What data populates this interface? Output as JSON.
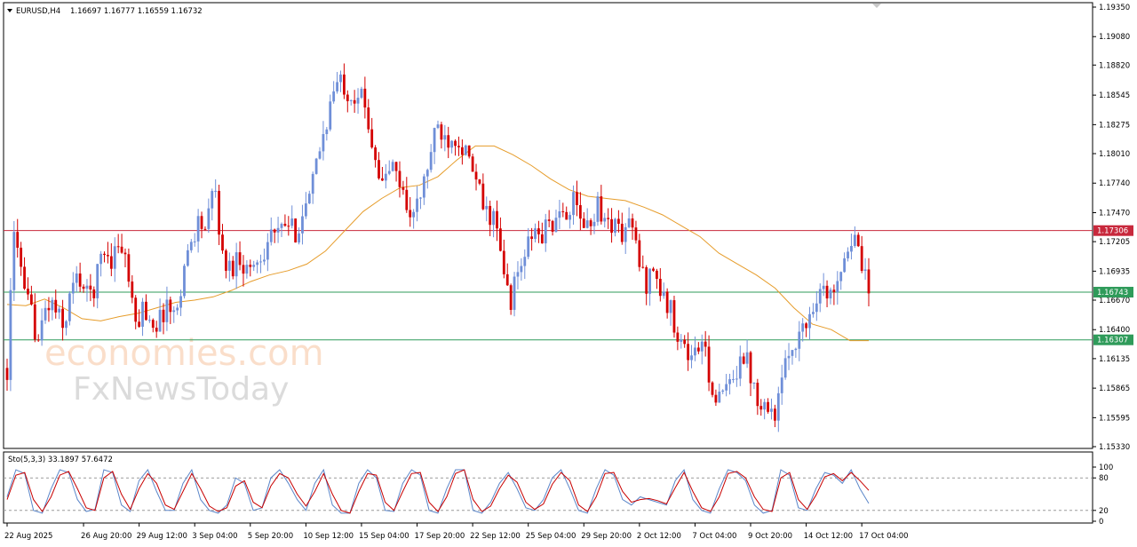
{
  "header": {
    "symbol_label": "EURUSD,H4",
    "ohlc_text": "1.16697 1.16777 1.16559 1.16732"
  },
  "watermark": {
    "line1": "economies.com",
    "line2": "FxNewsToday"
  },
  "colors": {
    "bull": "#6f8fd8",
    "bear": "#d40000",
    "ma": "#e69c2a",
    "resistance": "#c8283c",
    "support": "#2f9b5a",
    "stoch_main": "#5b86c9",
    "stoch_signal": "#c80000"
  },
  "chart_data": [
    {
      "type": "candlestick",
      "title": "EURUSD,H4",
      "ylim": [
        1.1533,
        1.1935
      ],
      "y_ticks": [
        "1.19350",
        "1.19080",
        "1.18820",
        "1.18545",
        "1.18275",
        "1.18010",
        "1.17740",
        "1.17470",
        "1.17205",
        "1.16935",
        "1.16670",
        "1.16400",
        "1.16135",
        "1.15865",
        "1.15595",
        "1.15330"
      ],
      "x_ticks": [
        "22 Aug 2025",
        "26 Aug 20:00",
        "29 Aug 12:00",
        "3 Sep 04:00",
        "5 Sep 20:00",
        "10 Sep 12:00",
        "15 Sep 04:00",
        "17 Sep 20:00",
        "22 Sep 12:00",
        "25 Sep 04:00",
        "29 Sep 20:00",
        "2 Oct 12:00",
        "7 Oct 04:00",
        "9 Oct 20:00",
        "14 Oct 12:00",
        "17 Oct 04:00"
      ],
      "x_tick_index": [
        0,
        22,
        38,
        54,
        70,
        86,
        102,
        118,
        134,
        150,
        166,
        182,
        198,
        214,
        230,
        246
      ],
      "close_path": [
        1.1605,
        1.1745,
        1.1672,
        1.1655,
        1.1628,
        1.1665,
        1.166,
        1.164,
        1.1675,
        1.169,
        1.167,
        1.168,
        1.1715,
        1.1705,
        1.172,
        1.17,
        1.164,
        1.166,
        1.165,
        1.1645,
        1.1665,
        1.165,
        1.169,
        1.172,
        1.174,
        1.173,
        1.1775,
        1.1705,
        1.1695,
        1.171,
        1.1695,
        1.17,
        1.171,
        1.173,
        1.1725,
        1.1738,
        1.1728,
        1.1745,
        1.176,
        1.18,
        1.183,
        1.186,
        1.1868,
        1.1855,
        1.1858,
        1.184,
        1.1805,
        1.177,
        1.179,
        1.178,
        1.1755,
        1.1745,
        1.1765,
        1.18,
        1.1825,
        1.1815,
        1.182,
        1.181,
        1.179,
        1.177,
        1.1745,
        1.1745,
        1.17,
        1.1665,
        1.169,
        1.171,
        1.173,
        1.1725,
        1.174,
        1.1735,
        1.175,
        1.1755,
        1.174,
        1.173,
        1.176,
        1.1735,
        1.174,
        1.1725,
        1.174,
        1.171,
        1.168,
        1.17,
        1.167,
        1.166,
        1.164,
        1.162,
        1.1615,
        1.163,
        1.16,
        1.157,
        1.1585,
        1.159,
        1.1625,
        1.1605,
        1.158,
        1.1575,
        1.156,
        1.1585,
        1.162,
        1.1635,
        1.164,
        1.1665,
        1.168,
        1.1665,
        1.169,
        1.171,
        1.1725,
        1.17,
        1.16732
      ],
      "candles_count": 249,
      "ma_path": [
        1.1663,
        1.1662,
        1.1668,
        1.166,
        1.165,
        1.1648,
        1.1652,
        1.1655,
        1.166,
        1.1665,
        1.1667,
        1.167,
        1.1676,
        1.1684,
        1.169,
        1.1694,
        1.17,
        1.1712,
        1.173,
        1.1748,
        1.176,
        1.177,
        1.1772,
        1.178,
        1.1795,
        1.1808,
        1.1808,
        1.18,
        1.179,
        1.1778,
        1.1768,
        1.1762,
        1.176,
        1.1758,
        1.1752,
        1.1745,
        1.1735,
        1.1725,
        1.171,
        1.17,
        1.169,
        1.1678,
        1.166,
        1.1645,
        1.164,
        1.163,
        1.163
      ],
      "levels": [
        {
          "name": "resistance",
          "value": 1.17306,
          "label": "1.17306"
        },
        {
          "name": "support-upper",
          "value": 1.16743,
          "label": "1.16743"
        },
        {
          "name": "support-lower",
          "value": 1.16307,
          "label": "1.16307"
        }
      ]
    },
    {
      "type": "line",
      "title": "Sto(5,3,3) 33.1897 57.6472",
      "ylim": [
        0,
        100
      ],
      "y_ticks": [
        "100",
        "80",
        "20",
        "0"
      ],
      "levels": [
        80,
        20
      ],
      "series": [
        {
          "name": "main",
          "values": [
            45,
            95,
            88,
            20,
            15,
            60,
            95,
            90,
            40,
            18,
            22,
            95,
            90,
            30,
            18,
            75,
            95,
            55,
            20,
            20,
            70,
            95,
            40,
            20,
            15,
            30,
            80,
            70,
            20,
            25,
            80,
            95,
            70,
            40,
            20,
            70,
            95,
            30,
            15,
            15,
            70,
            95,
            80,
            20,
            18,
            70,
            95,
            85,
            20,
            15,
            60,
            95,
            95,
            20,
            15,
            35,
            70,
            90,
            60,
            25,
            20,
            40,
            80,
            95,
            60,
            20,
            15,
            60,
            95,
            85,
            40,
            30,
            45,
            40,
            35,
            30,
            75,
            95,
            40,
            20,
            15,
            60,
            95,
            90,
            75,
            30,
            15,
            20,
            95,
            85,
            25,
            20,
            60,
            90,
            85,
            70,
            95,
            60,
            33
          ]
        },
        {
          "name": "signal",
          "values": [
            40,
            85,
            90,
            40,
            18,
            45,
            85,
            92,
            60,
            25,
            20,
            80,
            92,
            50,
            22,
            60,
            88,
            70,
            30,
            22,
            55,
            88,
            60,
            28,
            18,
            25,
            65,
            75,
            35,
            25,
            65,
            88,
            80,
            50,
            28,
            55,
            88,
            50,
            20,
            15,
            55,
            88,
            85,
            35,
            20,
            55,
            88,
            90,
            35,
            18,
            45,
            88,
            95,
            40,
            18,
            28,
            60,
            85,
            72,
            35,
            22,
            32,
            68,
            90,
            75,
            30,
            18,
            45,
            88,
            90,
            55,
            35,
            40,
            42,
            38,
            32,
            62,
            90,
            55,
            25,
            18,
            45,
            88,
            92,
            80,
            45,
            22,
            18,
            80,
            90,
            40,
            22,
            48,
            82,
            88,
            75,
            90,
            75,
            57
          ]
        }
      ]
    }
  ]
}
